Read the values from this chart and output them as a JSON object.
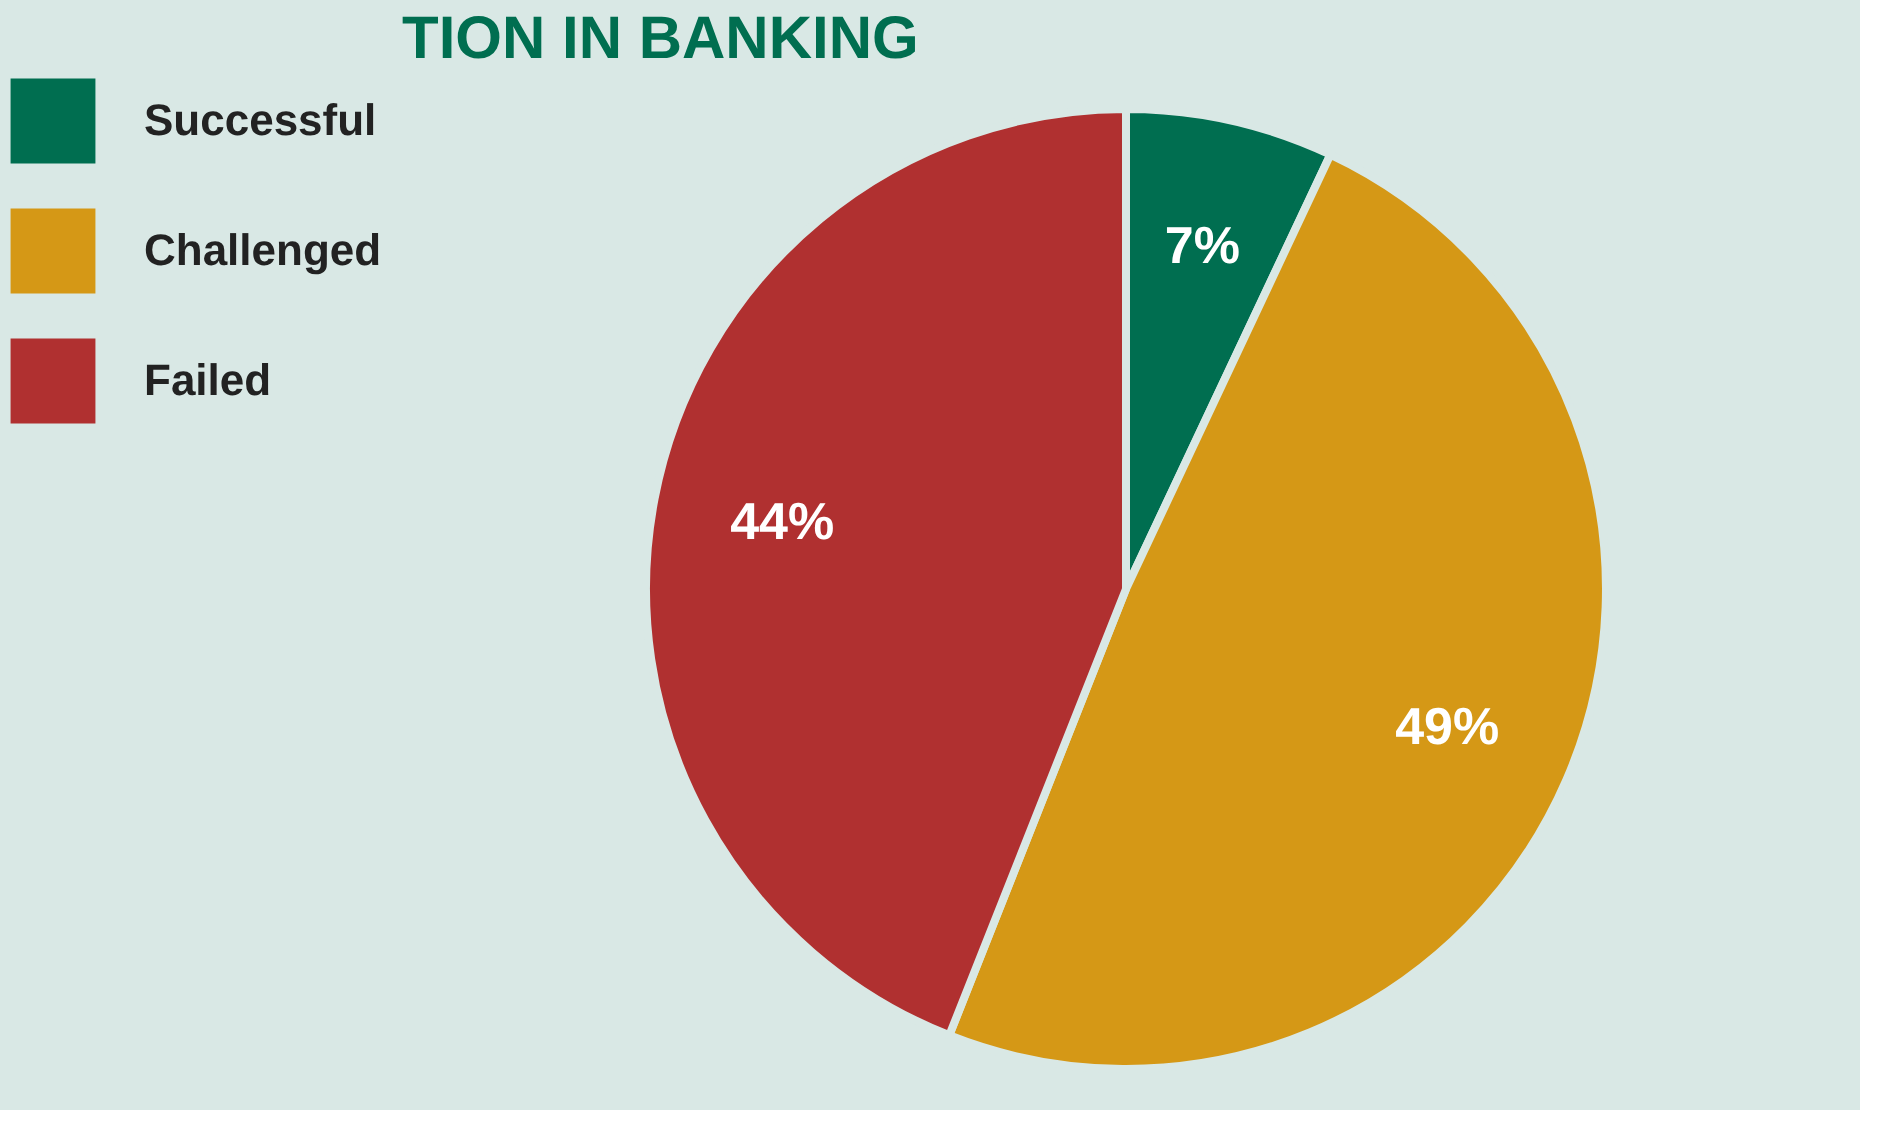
{
  "chart_data": {
    "type": "pie",
    "title": "TION IN BANKING",
    "categories": [
      "Successful",
      "Challenged",
      "Failed"
    ],
    "values": [
      7,
      49,
      44
    ],
    "colors": [
      "#006e50",
      "#d59816",
      "#b03030"
    ],
    "value_labels": [
      "7%",
      "49%",
      "44%"
    ],
    "legend": "left"
  }
}
